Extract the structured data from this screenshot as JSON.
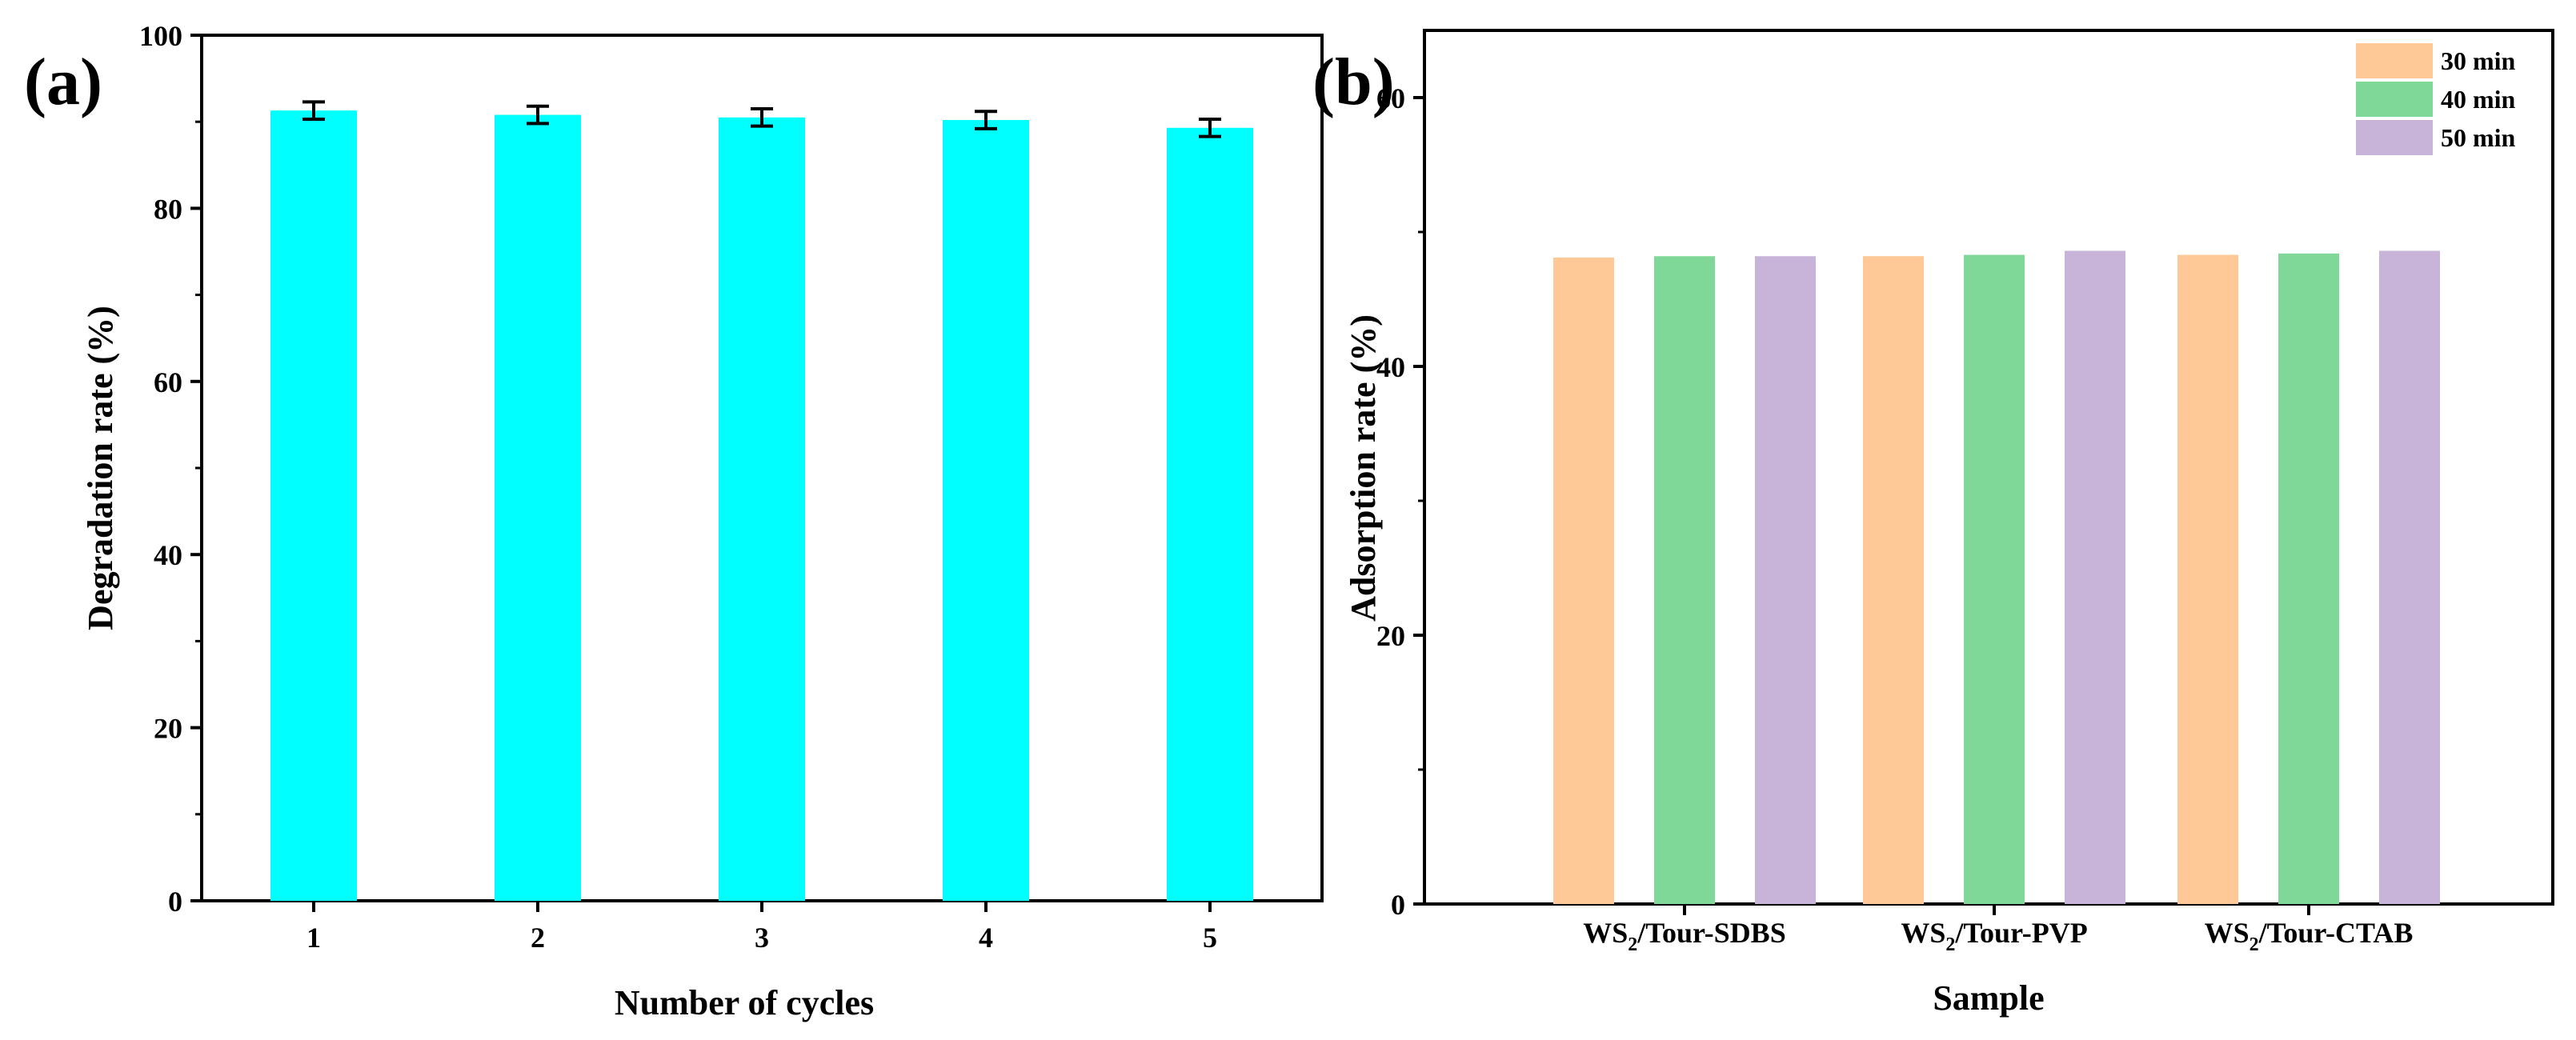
{
  "chart_data": [
    {
      "panel_label": "(a)",
      "type": "bar",
      "categories": [
        "1",
        "2",
        "3",
        "4",
        "5"
      ],
      "values": [
        91.3,
        90.8,
        90.5,
        90.2,
        89.3
      ],
      "error": [
        1.0,
        1.0,
        1.0,
        1.0,
        1.0
      ],
      "color": "#00ffff",
      "xlabel": "Number of cycles",
      "ylabel": "Degradation rate (%)",
      "ylim": [
        0,
        100
      ],
      "yticks": [
        "0",
        "20",
        "40",
        "60",
        "80",
        "100"
      ],
      "ytick_values": [
        0,
        20,
        40,
        60,
        80,
        100
      ],
      "grid": false
    },
    {
      "panel_label": "(b)",
      "type": "bar",
      "categories": [
        {
          "main": "WS",
          "sub": "2",
          "rest": "/Tour-SDBS"
        },
        {
          "main": "WS",
          "sub": "2",
          "rest": "/Tour-PVP"
        },
        {
          "main": "WS",
          "sub": "2",
          "rest": "/Tour-CTAB"
        }
      ],
      "series": [
        {
          "name": "30 min",
          "color": "#ffc896",
          "values": [
            48.1,
            48.2,
            48.3
          ]
        },
        {
          "name": "40 min",
          "color": "#80d898",
          "values": [
            48.2,
            48.3,
            48.4
          ]
        },
        {
          "name": "50 min",
          "color": "#c8b4d8",
          "values": [
            48.2,
            48.6,
            48.6
          ]
        }
      ],
      "xlabel": "Sample",
      "ylabel": "Adsorption rate (%)",
      "ylim": [
        0,
        65
      ],
      "yticks": [
        "0",
        "20",
        "40",
        "60"
      ],
      "ytick_values": [
        0,
        20,
        40,
        60
      ],
      "legend_position": "top-right",
      "grid": false
    }
  ]
}
